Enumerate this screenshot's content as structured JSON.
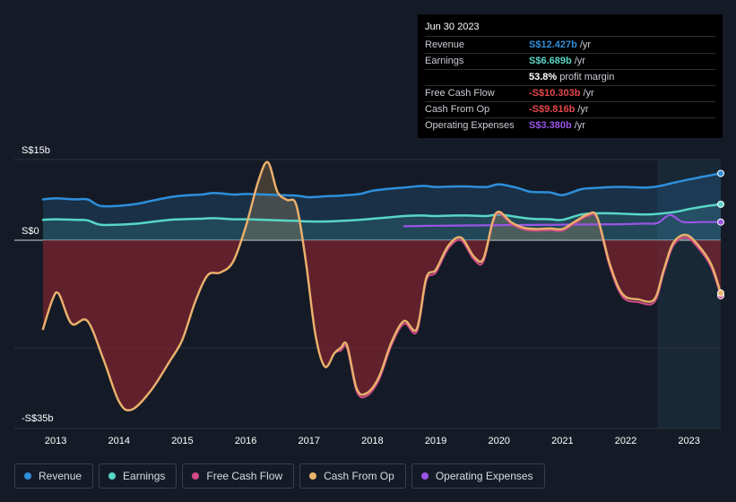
{
  "colors": {
    "background": "#151b26",
    "revenue": "#2e8fdb",
    "earnings": "#58d6c7",
    "free_cash_flow": "#d04b86",
    "cash_from_op": "#e9b26b",
    "operating_expenses": "#9a55e6",
    "negative_fill": "#7a2430",
    "highlight_band": "#1a2a3a"
  },
  "tooltip": {
    "date": "Jun 30 2023",
    "rows": [
      {
        "label": "Revenue",
        "value": "S$12.427b",
        "unit": "/yr",
        "color": "#2e8fdb"
      },
      {
        "label": "Earnings",
        "value": "S$6.689b",
        "unit": "/yr",
        "color": "#58d6c7"
      },
      {
        "label": "",
        "value": "53.8%",
        "unit": "profit margin",
        "color": "#ffffff"
      },
      {
        "label": "Free Cash Flow",
        "value": "-S$10.303b",
        "unit": "/yr",
        "color": "#e5484d"
      },
      {
        "label": "Cash From Op",
        "value": "-S$9.816b",
        "unit": "/yr",
        "color": "#e5484d"
      },
      {
        "label": "Operating Expenses",
        "value": "S$3.380b",
        "unit": "/yr",
        "color": "#9a55e6"
      }
    ]
  },
  "legend": [
    {
      "label": "Revenue",
      "color": "#2e8fdb"
    },
    {
      "label": "Earnings",
      "color": "#58d6c7"
    },
    {
      "label": "Free Cash Flow",
      "color": "#d04b86"
    },
    {
      "label": "Cash From Op",
      "color": "#e9b26b"
    },
    {
      "label": "Operating Expenses",
      "color": "#9a55e6"
    }
  ],
  "chart_data": {
    "type": "line",
    "y_tick_labels": [
      "S$15b",
      "S$0",
      "-S$35b"
    ],
    "ylim": [
      -35,
      15
    ],
    "xlim": [
      2012.8,
      2023.5
    ],
    "x_tick_labels": [
      "2013",
      "2014",
      "2015",
      "2016",
      "2017",
      "2018",
      "2019",
      "2020",
      "2021",
      "2022",
      "2023"
    ],
    "highlight_start": 2022.5,
    "series": [
      {
        "name": "Revenue",
        "key": "revenue",
        "points": [
          [
            2012.8,
            7.6
          ],
          [
            2013.0,
            7.8
          ],
          [
            2013.3,
            7.6
          ],
          [
            2013.5,
            7.6
          ],
          [
            2013.7,
            6.4
          ],
          [
            2014.0,
            6.4
          ],
          [
            2014.3,
            6.8
          ],
          [
            2014.5,
            7.3
          ],
          [
            2014.8,
            8.0
          ],
          [
            2015.0,
            8.3
          ],
          [
            2015.3,
            8.5
          ],
          [
            2015.5,
            8.8
          ],
          [
            2015.8,
            8.5
          ],
          [
            2016.0,
            8.6
          ],
          [
            2016.3,
            8.5
          ],
          [
            2016.5,
            8.4
          ],
          [
            2016.8,
            8.3
          ],
          [
            2017.0,
            8.0
          ],
          [
            2017.3,
            8.2
          ],
          [
            2017.5,
            8.3
          ],
          [
            2017.8,
            8.6
          ],
          [
            2018.0,
            9.2
          ],
          [
            2018.3,
            9.6
          ],
          [
            2018.5,
            9.8
          ],
          [
            2018.8,
            10.1
          ],
          [
            2019.0,
            9.9
          ],
          [
            2019.3,
            10.0
          ],
          [
            2019.5,
            10.0
          ],
          [
            2019.8,
            9.9
          ],
          [
            2020.0,
            10.4
          ],
          [
            2020.3,
            9.7
          ],
          [
            2020.5,
            9.0
          ],
          [
            2020.8,
            8.9
          ],
          [
            2021.0,
            8.4
          ],
          [
            2021.3,
            9.5
          ],
          [
            2021.5,
            9.7
          ],
          [
            2021.8,
            9.9
          ],
          [
            2022.0,
            9.9
          ],
          [
            2022.3,
            9.8
          ],
          [
            2022.5,
            10.0
          ],
          [
            2022.8,
            10.8
          ],
          [
            2023.0,
            11.3
          ],
          [
            2023.3,
            12.0
          ],
          [
            2023.5,
            12.427
          ]
        ]
      },
      {
        "name": "Earnings",
        "key": "earnings",
        "points": [
          [
            2012.8,
            3.8
          ],
          [
            2013.0,
            3.9
          ],
          [
            2013.3,
            3.8
          ],
          [
            2013.5,
            3.7
          ],
          [
            2013.7,
            2.9
          ],
          [
            2014.0,
            2.9
          ],
          [
            2014.3,
            3.1
          ],
          [
            2014.5,
            3.4
          ],
          [
            2014.8,
            3.8
          ],
          [
            2015.0,
            3.9
          ],
          [
            2015.3,
            4.0
          ],
          [
            2015.5,
            4.1
          ],
          [
            2015.8,
            3.9
          ],
          [
            2016.0,
            3.9
          ],
          [
            2016.3,
            3.8
          ],
          [
            2016.5,
            3.7
          ],
          [
            2016.8,
            3.6
          ],
          [
            2017.0,
            3.5
          ],
          [
            2017.3,
            3.5
          ],
          [
            2017.5,
            3.6
          ],
          [
            2017.8,
            3.8
          ],
          [
            2018.0,
            4.0
          ],
          [
            2018.3,
            4.3
          ],
          [
            2018.5,
            4.5
          ],
          [
            2018.8,
            4.6
          ],
          [
            2019.0,
            4.5
          ],
          [
            2019.3,
            4.6
          ],
          [
            2019.5,
            4.6
          ],
          [
            2019.8,
            4.5
          ],
          [
            2020.0,
            4.8
          ],
          [
            2020.3,
            4.3
          ],
          [
            2020.5,
            4.0
          ],
          [
            2020.8,
            3.9
          ],
          [
            2021.0,
            3.8
          ],
          [
            2021.3,
            4.8
          ],
          [
            2021.5,
            5.0
          ],
          [
            2021.8,
            5.0
          ],
          [
            2022.0,
            4.9
          ],
          [
            2022.3,
            4.8
          ],
          [
            2022.5,
            4.9
          ],
          [
            2022.8,
            5.3
          ],
          [
            2023.0,
            5.8
          ],
          [
            2023.3,
            6.4
          ],
          [
            2023.5,
            6.689
          ]
        ]
      },
      {
        "name": "Operating Expenses",
        "key": "operating_expenses",
        "points": [
          [
            2018.5,
            2.6
          ],
          [
            2019.0,
            2.7
          ],
          [
            2019.5,
            2.75
          ],
          [
            2020.0,
            2.8
          ],
          [
            2020.5,
            2.85
          ],
          [
            2021.0,
            2.9
          ],
          [
            2021.5,
            2.95
          ],
          [
            2022.0,
            3.0
          ],
          [
            2022.3,
            3.1
          ],
          [
            2022.5,
            3.2
          ],
          [
            2022.7,
            4.7
          ],
          [
            2022.9,
            3.4
          ],
          [
            2023.2,
            3.38
          ],
          [
            2023.5,
            3.38
          ]
        ]
      },
      {
        "name": "Free Cash Flow",
        "key": "free_cash_flow",
        "points": [
          [
            2012.8,
            -16.5
          ],
          [
            2012.95,
            -11.0
          ],
          [
            2013.05,
            -10.0
          ],
          [
            2013.25,
            -15.5
          ],
          [
            2013.5,
            -15.0
          ],
          [
            2013.75,
            -22.0
          ],
          [
            2014.0,
            -30.0
          ],
          [
            2014.2,
            -31.5
          ],
          [
            2014.5,
            -28.0
          ],
          [
            2014.8,
            -22.5
          ],
          [
            2015.0,
            -18.5
          ],
          [
            2015.2,
            -11.5
          ],
          [
            2015.4,
            -6.5
          ],
          [
            2015.6,
            -6.0
          ],
          [
            2015.8,
            -4.0
          ],
          [
            2016.0,
            2.5
          ],
          [
            2016.2,
            11.0
          ],
          [
            2016.35,
            14.5
          ],
          [
            2016.5,
            9.0
          ],
          [
            2016.65,
            7.5
          ],
          [
            2016.8,
            6.5
          ],
          [
            2016.95,
            -4.0
          ],
          [
            2017.1,
            -17.5
          ],
          [
            2017.25,
            -23.5
          ],
          [
            2017.4,
            -21.0
          ],
          [
            2017.5,
            -20.5
          ],
          [
            2017.6,
            -20.0
          ],
          [
            2017.75,
            -28.0
          ],
          [
            2017.9,
            -29.0
          ],
          [
            2018.1,
            -26.0
          ],
          [
            2018.3,
            -19.5
          ],
          [
            2018.5,
            -15.5
          ],
          [
            2018.7,
            -17.0
          ],
          [
            2018.85,
            -7.5
          ],
          [
            2019.0,
            -6.0
          ],
          [
            2019.2,
            -1.5
          ],
          [
            2019.4,
            0.0
          ],
          [
            2019.6,
            -3.5
          ],
          [
            2019.75,
            -4.0
          ],
          [
            2019.9,
            3.2
          ],
          [
            2020.0,
            5.0
          ],
          [
            2020.2,
            3.0
          ],
          [
            2020.4,
            2.0
          ],
          [
            2020.6,
            1.8
          ],
          [
            2020.8,
            1.9
          ],
          [
            2021.0,
            1.8
          ],
          [
            2021.2,
            3.2
          ],
          [
            2021.4,
            4.5
          ],
          [
            2021.55,
            4.0
          ],
          [
            2021.75,
            -5.0
          ],
          [
            2021.95,
            -10.5
          ],
          [
            2022.2,
            -11.5
          ],
          [
            2022.45,
            -11.5
          ],
          [
            2022.6,
            -6.0
          ],
          [
            2022.75,
            -1.0
          ],
          [
            2022.95,
            0.5
          ],
          [
            2023.15,
            -1.5
          ],
          [
            2023.35,
            -5.0
          ],
          [
            2023.5,
            -10.303
          ]
        ]
      },
      {
        "name": "Cash From Op",
        "key": "cash_from_op",
        "points": [
          [
            2012.8,
            -16.5
          ],
          [
            2012.95,
            -11.0
          ],
          [
            2013.05,
            -10.0
          ],
          [
            2013.25,
            -15.5
          ],
          [
            2013.5,
            -15.0
          ],
          [
            2013.75,
            -22.0
          ],
          [
            2014.0,
            -30.0
          ],
          [
            2014.2,
            -31.5
          ],
          [
            2014.5,
            -28.0
          ],
          [
            2014.8,
            -22.5
          ],
          [
            2015.0,
            -18.5
          ],
          [
            2015.2,
            -11.5
          ],
          [
            2015.4,
            -6.5
          ],
          [
            2015.6,
            -6.0
          ],
          [
            2015.8,
            -4.0
          ],
          [
            2016.0,
            2.5
          ],
          [
            2016.2,
            11.0
          ],
          [
            2016.35,
            14.5
          ],
          [
            2016.5,
            9.0
          ],
          [
            2016.65,
            7.5
          ],
          [
            2016.8,
            6.5
          ],
          [
            2016.95,
            -4.0
          ],
          [
            2017.1,
            -17.5
          ],
          [
            2017.25,
            -23.5
          ],
          [
            2017.4,
            -21.0
          ],
          [
            2017.5,
            -20.0
          ],
          [
            2017.6,
            -19.5
          ],
          [
            2017.75,
            -27.5
          ],
          [
            2017.9,
            -28.5
          ],
          [
            2018.1,
            -25.5
          ],
          [
            2018.3,
            -19.0
          ],
          [
            2018.5,
            -15.0
          ],
          [
            2018.7,
            -16.5
          ],
          [
            2018.85,
            -7.0
          ],
          [
            2019.0,
            -5.5
          ],
          [
            2019.2,
            -1.0
          ],
          [
            2019.4,
            0.5
          ],
          [
            2019.6,
            -3.0
          ],
          [
            2019.75,
            -3.5
          ],
          [
            2019.9,
            3.5
          ],
          [
            2020.0,
            5.3
          ],
          [
            2020.2,
            3.3
          ],
          [
            2020.4,
            2.3
          ],
          [
            2020.6,
            2.1
          ],
          [
            2020.8,
            2.2
          ],
          [
            2021.0,
            2.1
          ],
          [
            2021.2,
            3.5
          ],
          [
            2021.4,
            4.8
          ],
          [
            2021.55,
            4.3
          ],
          [
            2021.75,
            -4.5
          ],
          [
            2021.95,
            -10.0
          ],
          [
            2022.2,
            -11.0
          ],
          [
            2022.45,
            -11.0
          ],
          [
            2022.6,
            -5.5
          ],
          [
            2022.75,
            -0.5
          ],
          [
            2022.95,
            1.0
          ],
          [
            2023.15,
            -1.0
          ],
          [
            2023.35,
            -4.5
          ],
          [
            2023.5,
            -9.816
          ]
        ]
      }
    ]
  }
}
